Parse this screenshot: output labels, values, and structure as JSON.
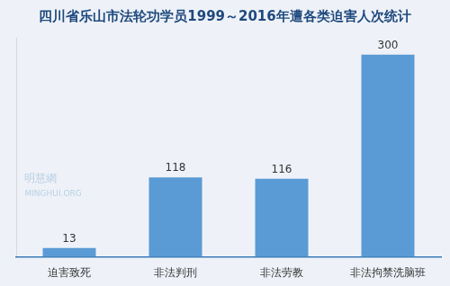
{
  "chart_data": {
    "type": "bar",
    "title": "四川省乐山市法轮功学员1999～2016年遭各类迫害人次统计",
    "categories": [
      "迫害致死",
      "非法判刑",
      "非法劳教",
      "非法拘禁洗脑班"
    ],
    "values": [
      13,
      118,
      116,
      300
    ],
    "color": "#5b9bd5",
    "ylim": [
      0,
      325
    ],
    "grid": false,
    "data_labels": true,
    "tick_labels": "x",
    "annotations": [
      "明慧網",
      "MINGHUI.ORG"
    ]
  }
}
